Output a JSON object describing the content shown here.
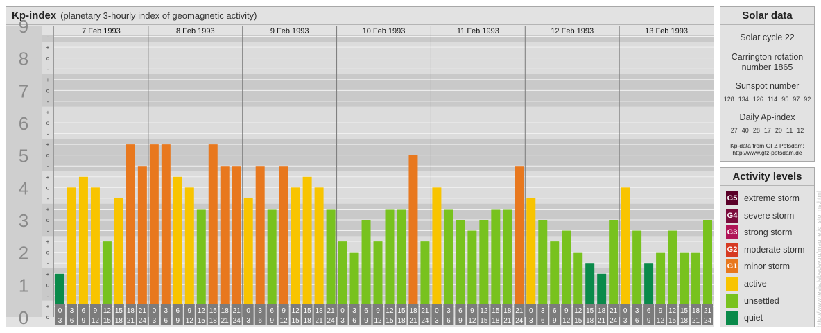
{
  "header": {
    "title": "Kp-index",
    "subtitle": "(planetary 3-hourly index of geomagnetic activity)"
  },
  "chart_data": {
    "type": "bar",
    "ylim": [
      0,
      9
    ],
    "y_ticks": [
      "0",
      "1",
      "2",
      "3",
      "4",
      "5",
      "6",
      "7",
      "8",
      "9"
    ],
    "minor_ticks": [
      "o",
      "+",
      "-",
      "o"
    ],
    "days": [
      "7 Feb 1993",
      "8 Feb 1993",
      "9 Feb 1993",
      "10 Feb 1993",
      "11 Feb 1993",
      "12 Feb 1993",
      "13 Feb 1993"
    ],
    "intervals": [
      [
        "0",
        "3"
      ],
      [
        "3",
        "6"
      ],
      [
        "6",
        "9"
      ],
      [
        "9",
        "12"
      ],
      [
        "12",
        "15"
      ],
      [
        "15",
        "18"
      ],
      [
        "18",
        "21"
      ],
      [
        "21",
        "24"
      ]
    ],
    "values": [
      1.333,
      4.0,
      4.333,
      4.0,
      2.333,
      3.667,
      5.333,
      4.667,
      5.333,
      5.333,
      4.333,
      4.0,
      3.333,
      5.333,
      4.667,
      4.667,
      3.667,
      4.667,
      3.333,
      4.667,
      4.0,
      4.333,
      4.0,
      3.333,
      2.333,
      2.0,
      3.0,
      2.333,
      3.333,
      3.333,
      5.0,
      2.333,
      4.0,
      3.333,
      3.0,
      2.667,
      3.0,
      3.333,
      3.333,
      4.667,
      3.667,
      3.0,
      2.333,
      2.667,
      2.0,
      1.667,
      1.333,
      3.0,
      4.0,
      2.667,
      1.667,
      2.0,
      2.667,
      2.0,
      2.0,
      3.0
    ],
    "colors": {
      "quiet": "#0a8a4a",
      "unsettled": "#78c21e",
      "active": "#f8c400",
      "minor_storm": "#e8781e",
      "moderate_storm": "#d63a22",
      "strong_storm": "#b01456",
      "severe_storm": "#7a0c3c",
      "extreme_storm": "#5a0028"
    },
    "band_colors": {
      "dark": "#c9c9c9",
      "light": "#dcdcdc",
      "grid": "#f0f0f0",
      "day_line": "#7a7a7a",
      "time_box": "#7c7c7c"
    }
  },
  "solar": {
    "title": "Solar data",
    "cycle": "Solar cycle 22",
    "carrington_line1": "Carrington rotation",
    "carrington_line2": "number 1865",
    "sunspot_label": "Sunspot number",
    "sunspot_values": [
      "128",
      "134",
      "126",
      "114",
      "95",
      "97",
      "92"
    ],
    "ap_label": "Daily Ap-index",
    "ap_values": [
      "27",
      "40",
      "28",
      "17",
      "20",
      "11",
      "12"
    ],
    "source_line1": "Kp-data from GFZ Potsdam:",
    "source_line2": "http://www.gfz-potsdam.de"
  },
  "activity": {
    "title": "Activity levels",
    "items": [
      {
        "code": "G5",
        "label": "extreme storm",
        "color": "#5a0028"
      },
      {
        "code": "G4",
        "label": "severe storm",
        "color": "#7a0c3c"
      },
      {
        "code": "G3",
        "label": "strong storm",
        "color": "#b01456"
      },
      {
        "code": "G2",
        "label": "moderate storm",
        "color": "#d63a22"
      },
      {
        "code": "G1",
        "label": "minor storm",
        "color": "#e8781e"
      },
      {
        "code": "",
        "label": "active",
        "color": "#f8c400"
      },
      {
        "code": "",
        "label": "unsettled",
        "color": "#78c21e"
      },
      {
        "code": "",
        "label": "quiet",
        "color": "#0a8a4a"
      }
    ]
  },
  "watermark": "http://www.tesis.lebedev.ru/magnetic_storms.html"
}
